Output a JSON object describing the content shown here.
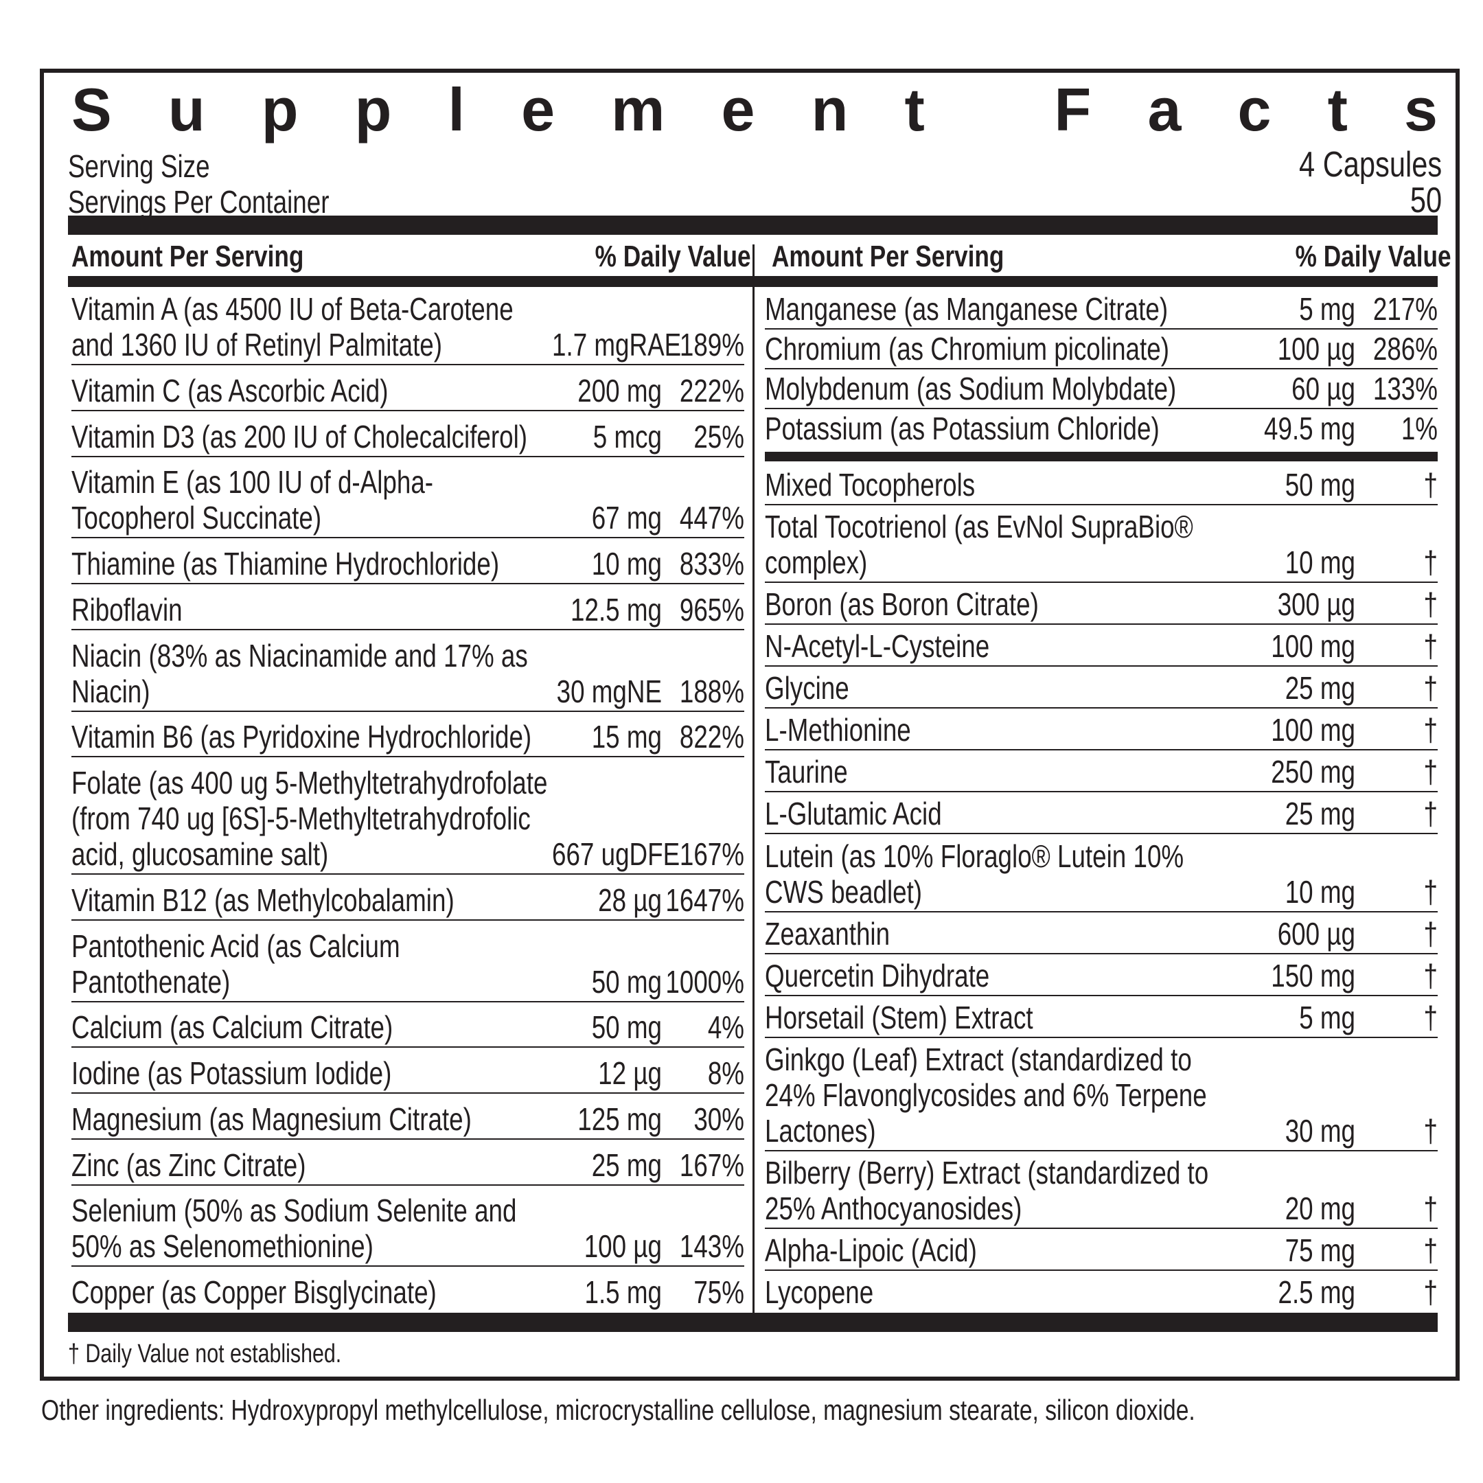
{
  "title": "Supplement Facts",
  "serving": {
    "size_label": "Serving Size",
    "size_value": "4 Capsules",
    "per_container_label": "Servings Per Container",
    "per_container_value": "50"
  },
  "header": {
    "amount": "Amount Per Serving",
    "daily_value": "% Daily Value"
  },
  "left": {
    "rows": [
      {
        "name": "Vitamin A (as 4500 IU of Beta-Carotene and 1360 IU of Retinyl Palmitate)",
        "amount": "1.7 mgRAE",
        "dv": "189%"
      },
      {
        "name": "Vitamin C (as Ascorbic Acid)",
        "amount": "200 mg",
        "dv": "222%"
      },
      {
        "name": "Vitamin D3 (as 200 IU of Cholecalciferol)",
        "amount": "5 mcg",
        "dv": "25%"
      },
      {
        "name": "Vitamin E (as 100 IU of d-Alpha-Tocopherol Succinate)",
        "amount": "67 mg",
        "dv": "447%"
      },
      {
        "name": "Thiamine (as Thiamine Hydrochloride)",
        "amount": "10 mg",
        "dv": "833%"
      },
      {
        "name": "Riboflavin",
        "amount": "12.5 mg",
        "dv": "965%"
      },
      {
        "name": "Niacin (83% as Niacinamide and 17% as Niacin)",
        "amount": "30 mgNE",
        "dv": "188%"
      },
      {
        "name": "Vitamin B6 (as Pyridoxine Hydrochloride)",
        "amount": "15 mg",
        "dv": "822%"
      },
      {
        "name": "Folate (as 400 ug 5-Methyltetrahydrofolate (from 740 ug [6S]-5-Methyltetrahydrofolic acid, glucosamine salt)",
        "amount": "667 ugDFE",
        "dv": "167%"
      },
      {
        "name": "Vitamin B12 (as Methylcobalamin)",
        "amount": "28 µg",
        "dv": "1647%"
      },
      {
        "name": "Pantothenic Acid (as Calcium Pantothenate)",
        "amount": "50 mg",
        "dv": "1000%"
      },
      {
        "name": "Calcium (as Calcium Citrate)",
        "amount": "50 mg",
        "dv": "4%"
      },
      {
        "name": "Iodine (as Potassium Iodide)",
        "amount": "12 µg",
        "dv": "8%"
      },
      {
        "name": "Magnesium (as Magnesium Citrate)",
        "amount": "125 mg",
        "dv": "30%"
      },
      {
        "name": "Zinc (as Zinc Citrate)",
        "amount": "25 mg",
        "dv": "167%"
      },
      {
        "name": "Selenium (50% as Sodium Selenite and 50% as Selenomethionine)",
        "amount": "100 µg",
        "dv": "143%"
      },
      {
        "name": "Copper (as Copper Bisglycinate)",
        "amount": "1.5 mg",
        "dv": "75%"
      }
    ]
  },
  "right": {
    "minerals": [
      {
        "name": "Manganese (as Manganese Citrate)",
        "amount": "5 mg",
        "dv": "217%"
      },
      {
        "name": "Chromium (as Chromium picolinate)",
        "amount": "100 µg",
        "dv": "286%"
      },
      {
        "name": "Molybdenum (as Sodium Molybdate)",
        "amount": "60 µg",
        "dv": "133%"
      },
      {
        "name": "Potassium (as Potassium Chloride)",
        "amount": "49.5 mg",
        "dv": "1%"
      }
    ],
    "others": [
      {
        "name": "Mixed Tocopherols",
        "amount": "50 mg",
        "dv": "†"
      },
      {
        "name": "Total Tocotrienol (as EvNol SupraBio® complex)",
        "amount": "10 mg",
        "dv": "†"
      },
      {
        "name": "Boron (as Boron Citrate)",
        "amount": "300 µg",
        "dv": "†"
      },
      {
        "name": "N-Acetyl-L-Cysteine",
        "amount": "100 mg",
        "dv": "†"
      },
      {
        "name": "Glycine",
        "amount": "25 mg",
        "dv": "†"
      },
      {
        "name": "L-Methionine",
        "amount": "100 mg",
        "dv": "†"
      },
      {
        "name": "Taurine",
        "amount": "250 mg",
        "dv": "†"
      },
      {
        "name": "L-Glutamic Acid",
        "amount": "25 mg",
        "dv": "†"
      },
      {
        "name": "Lutein (as 10% Floraglo® Lutein 10% CWS beadlet)",
        "amount": "10 mg",
        "dv": "†"
      },
      {
        "name": "Zeaxanthin",
        "amount": "600 µg",
        "dv": "†"
      },
      {
        "name": "Quercetin Dihydrate",
        "amount": "150 mg",
        "dv": "†"
      },
      {
        "name": "Horsetail (Stem) Extract",
        "amount": "5 mg",
        "dv": "†"
      },
      {
        "name": "Ginkgo (Leaf) Extract (standardized to 24% Flavonglycosides and 6% Terpene Lactones)",
        "amount": "30 mg",
        "dv": "†"
      },
      {
        "name": "Bilberry (Berry) Extract (standardized to 25% Anthocyanosides)",
        "amount": "20 mg",
        "dv": "†"
      },
      {
        "name": "Alpha-Lipoic (Acid)",
        "amount": "75 mg",
        "dv": "†"
      },
      {
        "name": "Lycopene",
        "amount": "2.5 mg",
        "dv": "†"
      }
    ]
  },
  "footnote": "† Daily Value not established.",
  "other_ingredients": "Other ingredients: Hydroxypropyl methylcellulose, microcrystalline cellulose, magnesium stearate, silicon dioxide."
}
